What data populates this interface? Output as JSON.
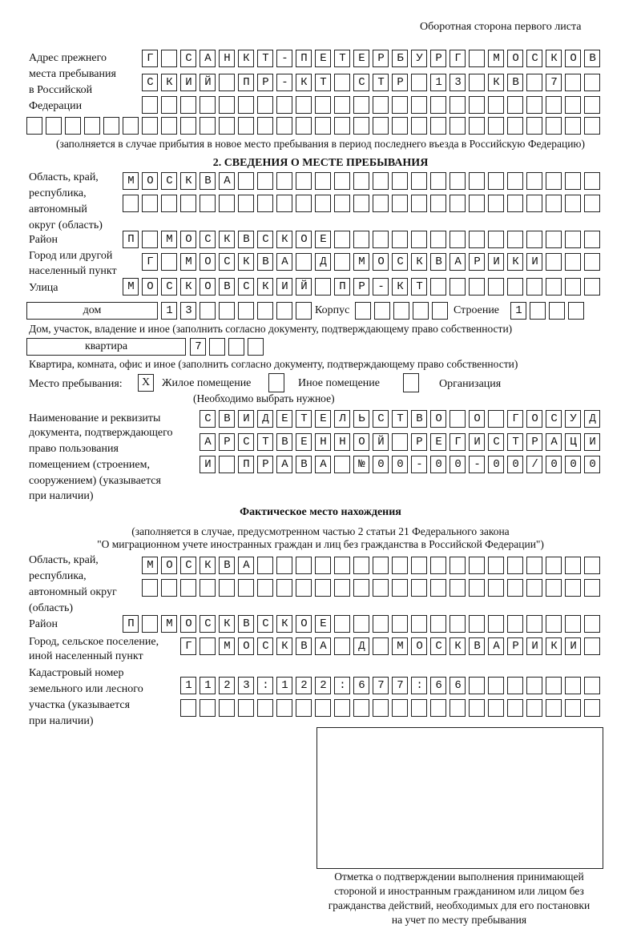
{
  "header": {
    "page_side": "Оборотная сторона первого листа"
  },
  "previous_address": {
    "label": [
      "Адрес прежнего",
      "места пребывания",
      "в Российской",
      "Федерации"
    ],
    "rows": [
      "Г САНКТ-ПЕТЕРБУРГ МОСКОВ",
      "СКИЙ ПР-КТ СТР 13 КВ 7",
      "",
      ""
    ],
    "note": "(заполняется в случае прибытия в новое место пребывания в период последнего въезда в Российскую Федерацию)"
  },
  "stay": {
    "section_title": "2. СВЕДЕНИЯ О МЕСТЕ ПРЕБЫВАНИЯ",
    "region_label": [
      "Область, край,",
      "республика,",
      "автономный",
      "округ (область)"
    ],
    "region_rows": [
      "МОСКВА",
      ""
    ],
    "district_label": "Район",
    "district": "П МОСКВСКОЕ",
    "city_label": [
      "Город или другой",
      "населенный пункт"
    ],
    "city": "Г МОСКВА Д МОСКВАРИКИ",
    "street_label": "Улица",
    "street": "МОСКОВСКИЙ ПР-КТ",
    "house_type": "дом",
    "house": "13",
    "korpus_label": "Корпус",
    "korpus": "",
    "building_label": "Строение",
    "building": "1",
    "house_note": "Дом, участок, владение и иное (заполнить согласно документу, подтверждающему право собственности)",
    "apt_type": "квартира",
    "apt": "7",
    "apt_note": "Квартира, комната, офис и иное (заполнить согласно документу, подтверждающему право собственности)",
    "place_label": "Место пребывания:",
    "place_options": [
      {
        "label": "Жилое помещение",
        "mark": "X"
      },
      {
        "label": "Иное помещение",
        "mark": ""
      },
      {
        "label": "Организация",
        "mark": ""
      }
    ],
    "place_note": "(Необходимо выбрать нужное)",
    "doc_label": [
      "Наименование и реквизиты",
      "документа, подтверждающего",
      "право пользования",
      "помещением (строением,",
      "сооружением) (указывается",
      "при наличии)"
    ],
    "doc_rows": [
      "СВИДЕТЕЛЬСТВО О ГОСУД",
      "АРСТВЕННОЙ РЕГИСТРАЦИ",
      "И ПРАВА №00-00-00/000"
    ]
  },
  "actual": {
    "title": "Фактическое место нахождения",
    "note": [
      "(заполняется в случае, предусмотренном частью 2 статьи 21 Федерального закона",
      "\"О миграционном учете иностранных граждан и лиц без гражданства в Российской Федерации\")"
    ],
    "region_label": [
      "Область, край,",
      "республика,",
      "автономный округ",
      "(область)"
    ],
    "region_rows": [
      "МОСКВА",
      ""
    ],
    "district_label": "Район",
    "district": "П МОСКВСКОЕ",
    "city_label": [
      "Город, сельское поселение,",
      "иной населенный пункт"
    ],
    "city": "Г МОСКВА Д МОСКВАРИКИ",
    "cadastre_label": [
      "Кадастровый номер",
      "земельного или лесного",
      "участка (указывается",
      "при наличии)"
    ],
    "cadastre_rows": [
      "1123:122:677:66",
      ""
    ]
  },
  "confirmation": {
    "caption": [
      "Отметка о подтверждении выполнения принимающей",
      "стороной и иностранным гражданином или лицом без",
      "гражданства действий, необходимых для его постановки",
      "на учет по месту пребывания"
    ]
  }
}
